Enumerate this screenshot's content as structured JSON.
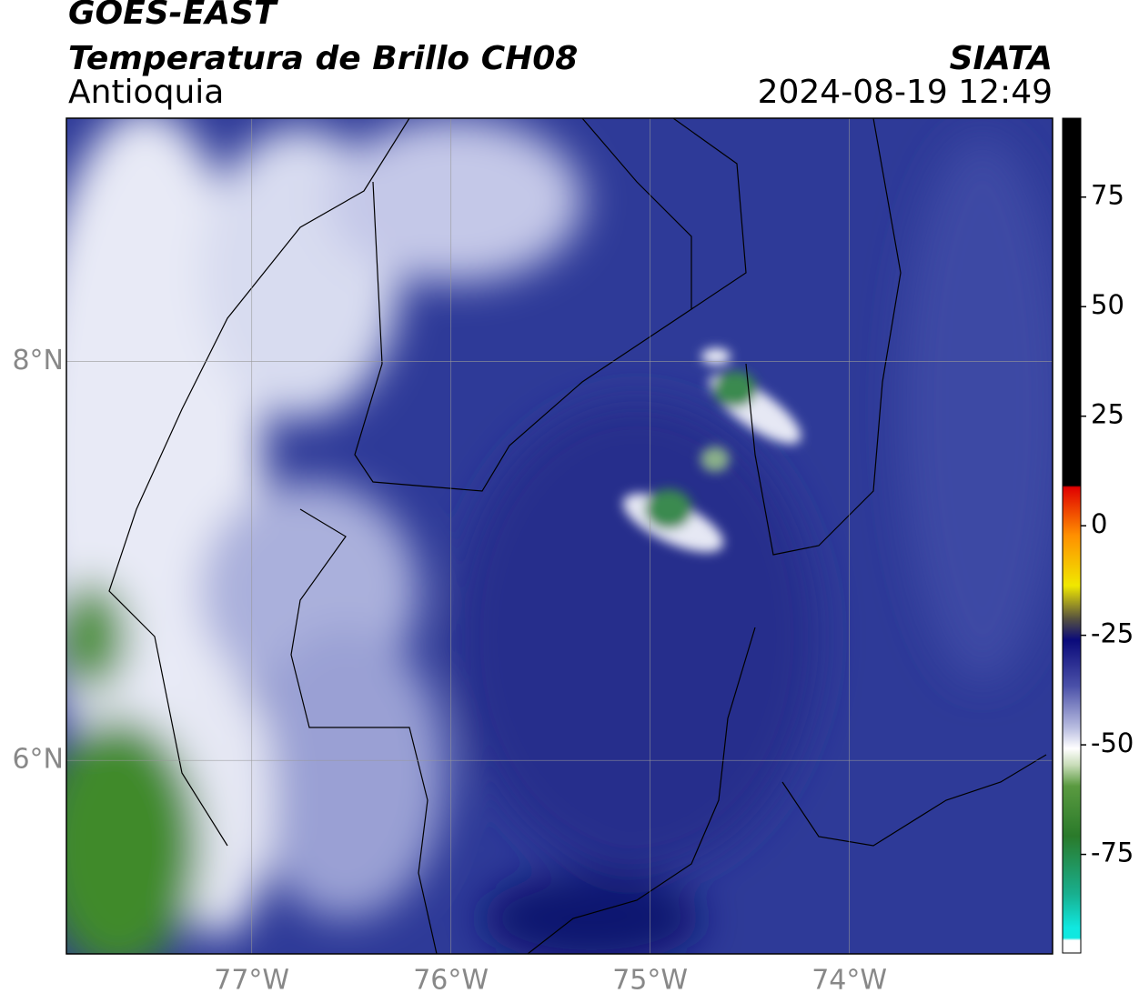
{
  "header": {
    "title": "GOES-EAST",
    "subtitle": "Temperatura de Brillo CH08",
    "region": "Antioquia",
    "source": "SIATA",
    "datetime": "2024-08-19 12:49"
  },
  "map": {
    "lonlim": [
      -77.93,
      -72.98
    ],
    "latlim": [
      5.03,
      9.22
    ],
    "lon_ticks": [
      {
        "value": -77,
        "label": "77°W"
      },
      {
        "value": -76,
        "label": "76°W"
      },
      {
        "value": -75,
        "label": "75°W"
      },
      {
        "value": -74,
        "label": "74°W"
      }
    ],
    "lat_ticks": [
      {
        "value": 8,
        "label": "8°N"
      },
      {
        "value": 6,
        "label": "6°N"
      }
    ],
    "grid": true
  },
  "colorbar": {
    "lim": [
      -97.5,
      93
    ],
    "ticks": [
      75,
      50,
      25,
      0,
      -25,
      -50,
      -75
    ]
  }
}
